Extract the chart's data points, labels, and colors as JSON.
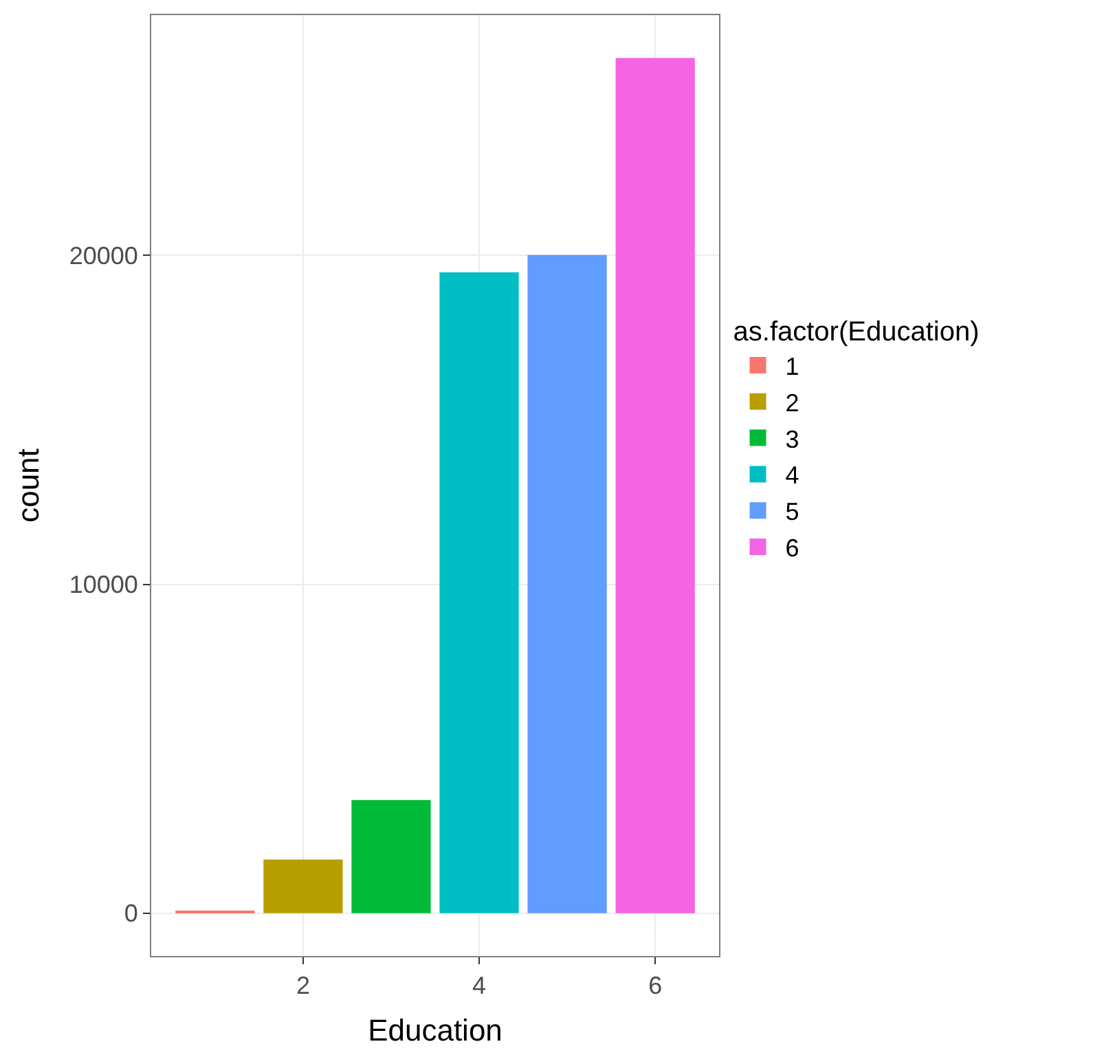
{
  "chart_data": {
    "type": "bar",
    "xlabel": "Education",
    "ylabel": "count",
    "legend_title": "as.factor(Education)",
    "series": [
      {
        "name": "1",
        "color": "#f8766d",
        "x": [
          1
        ],
        "values": [
          60
        ]
      },
      {
        "name": "2",
        "color": "#b79f00",
        "x": [
          2
        ],
        "values": [
          1630
        ]
      },
      {
        "name": "3",
        "color": "#00ba38",
        "x": [
          3
        ],
        "values": [
          3440
        ]
      },
      {
        "name": "4",
        "color": "#00bfc4",
        "x": [
          4
        ],
        "values": [
          19480
        ]
      },
      {
        "name": "5",
        "color": "#619cff",
        "x": [
          5
        ],
        "values": [
          20010
        ]
      },
      {
        "name": "6",
        "color": "#f564e3",
        "x": [
          6
        ],
        "values": [
          26000
        ]
      }
    ],
    "xlim": [
      0.275,
      6.725
    ],
    "xticks": [
      2,
      4,
      6
    ],
    "ylim": [
      -1300,
      27300
    ],
    "yticks": [
      0,
      10000,
      20000
    ],
    "grid": true,
    "legend": "right"
  }
}
